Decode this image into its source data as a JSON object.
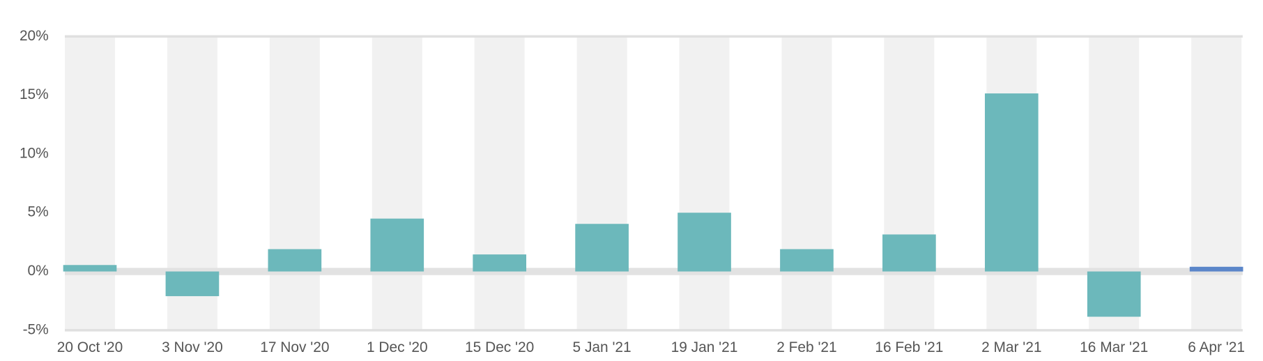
{
  "chart_data": {
    "type": "bar",
    "categories": [
      "20 Oct '20",
      "3 Nov '20",
      "17 Nov '20",
      "1 Dec '20",
      "15 Dec '20",
      "5 Jan '21",
      "19 Jan '21",
      "2 Feb '21",
      "16 Feb '21",
      "2 Mar '21",
      "16 Mar '21",
      "6 Apr '21"
    ],
    "values": [
      0.55,
      -2.1,
      1.9,
      4.5,
      1.45,
      4.05,
      5.0,
      1.9,
      3.15,
      15.15,
      -3.85,
      0.4
    ],
    "colors": [
      "#6cb8bb",
      "#6cb8bb",
      "#6cb8bb",
      "#6cb8bb",
      "#6cb8bb",
      "#6cb8bb",
      "#6cb8bb",
      "#6cb8bb",
      "#6cb8bb",
      "#6cb8bb",
      "#6cb8bb",
      "#5b86c9"
    ],
    "ylim": [
      -5,
      20
    ],
    "yticks": [
      {
        "value": -5,
        "label": "-5%"
      },
      {
        "value": 0,
        "label": "0%"
      },
      {
        "value": 5,
        "label": "5%"
      },
      {
        "value": 10,
        "label": "10%"
      },
      {
        "value": 15,
        "label": "15%"
      },
      {
        "value": 20,
        "label": "20%"
      }
    ]
  }
}
